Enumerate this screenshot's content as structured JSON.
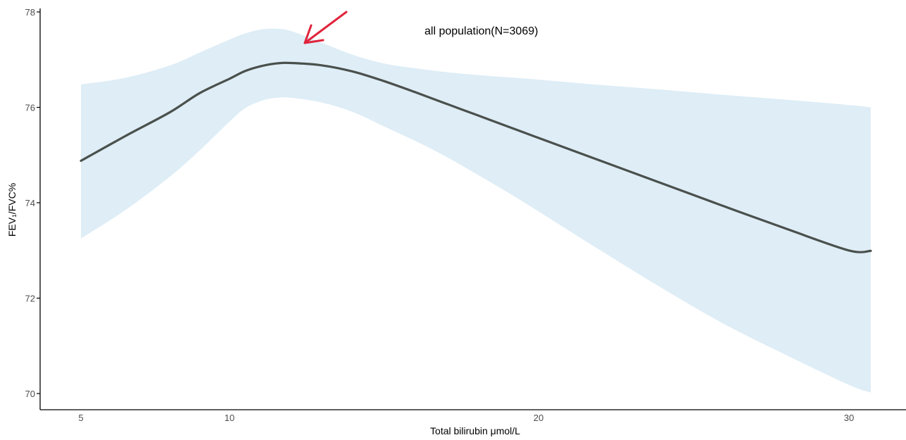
{
  "chart_data": {
    "type": "line",
    "annotation": "all population(N=3069)",
    "xlabel": "Total bilirubin μmol/L",
    "ylabel": "FEV₁/FVC%",
    "ylim": [
      69.65,
      78.0
    ],
    "y_ticks": [
      70,
      72,
      74,
      76,
      78
    ],
    "x_ticks": [
      {
        "label": "5",
        "value": 5
      },
      {
        "label": "10",
        "value": 10
      },
      {
        "label": "20",
        "value": 20
      },
      {
        "label": "30",
        "value": 30
      }
    ],
    "grid": false,
    "series": [
      {
        "x": [
          5.0,
          6.5,
          8.0,
          9.0,
          10.0,
          10.5,
          11.0,
          11.5,
          12.0,
          13.0,
          14.0,
          15.0,
          16.0,
          17.0,
          18.0,
          19.0,
          20.0,
          22.0,
          24.0,
          26.0,
          28.0,
          30.0,
          30.7
        ],
        "y": [
          74.88,
          75.4,
          75.9,
          76.3,
          76.6,
          76.76,
          76.86,
          76.92,
          76.93,
          76.88,
          76.75,
          76.55,
          76.32,
          76.08,
          75.84,
          75.6,
          75.36,
          74.88,
          74.4,
          73.92,
          73.45,
          73.0,
          72.99
        ],
        "lower": [
          73.25,
          73.85,
          74.55,
          75.1,
          75.7,
          75.98,
          76.13,
          76.2,
          76.2,
          76.1,
          75.9,
          75.6,
          75.3,
          74.97,
          74.6,
          74.22,
          73.82,
          73.0,
          72.2,
          71.45,
          70.8,
          70.18,
          70.02
        ],
        "upper": [
          76.48,
          76.62,
          76.88,
          77.15,
          77.42,
          77.55,
          77.63,
          77.65,
          77.6,
          77.35,
          77.1,
          76.92,
          76.82,
          76.74,
          76.68,
          76.63,
          76.58,
          76.47,
          76.37,
          76.26,
          76.16,
          76.05,
          76.0
        ]
      }
    ],
    "colors": {
      "line": "#4a504c",
      "band": "#deedf6",
      "arrow": "#e0243c",
      "axis": "#000000"
    }
  }
}
